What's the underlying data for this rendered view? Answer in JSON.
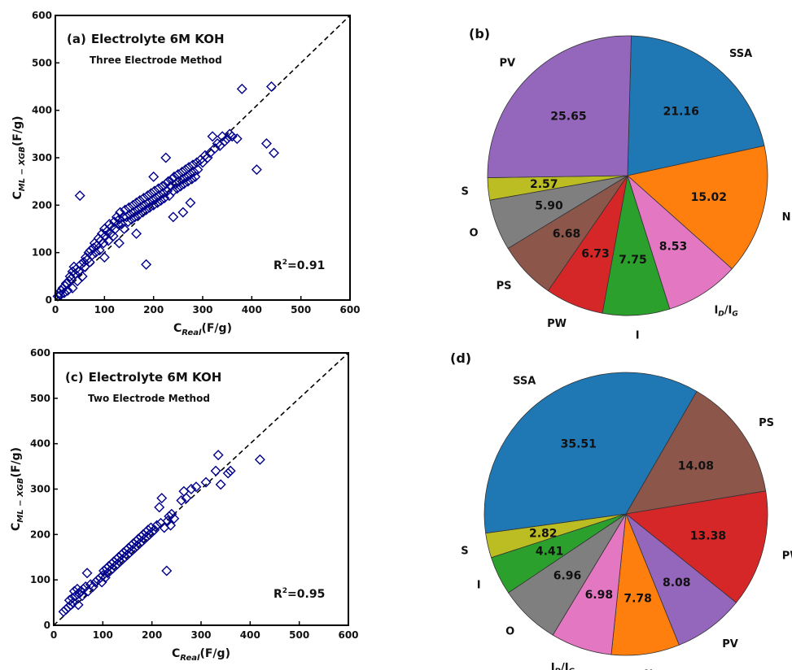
{
  "chart_data": [
    {
      "id": "a",
      "type": "scatter",
      "panel_label": "(a)",
      "title": "Electrolyte 6M KOH",
      "subtitle": "Three Electrode Method",
      "xlabel_main": "C",
      "xlabel_sub": "Real",
      "xlabel_unit": "(F/g)",
      "ylabel_main": "C",
      "ylabel_sub": "ML − XGB",
      "ylabel_unit": "(F/g)",
      "xlim": [
        0,
        600
      ],
      "ylim": [
        0,
        600
      ],
      "xticks": [
        0,
        100,
        200,
        300,
        400,
        500,
        600
      ],
      "yticks": [
        0,
        100,
        200,
        300,
        400,
        500,
        600
      ],
      "r2_label": "R",
      "r2_value": "=0.91",
      "reference_line": "y = x",
      "marker": "diamond",
      "marker_color": "#00008b",
      "points": [
        [
          5,
          8
        ],
        [
          8,
          15
        ],
        [
          10,
          10
        ],
        [
          12,
          20
        ],
        [
          15,
          25
        ],
        [
          18,
          15
        ],
        [
          20,
          30
        ],
        [
          22,
          35
        ],
        [
          25,
          20
        ],
        [
          28,
          40
        ],
        [
          30,
          50
        ],
        [
          32,
          45
        ],
        [
          35,
          60
        ],
        [
          35,
          25
        ],
        [
          38,
          70
        ],
        [
          40,
          55
        ],
        [
          42,
          65
        ],
        [
          45,
          40
        ],
        [
          48,
          60
        ],
        [
          50,
          220
        ],
        [
          52,
          75
        ],
        [
          55,
          50
        ],
        [
          58,
          80
        ],
        [
          60,
          70
        ],
        [
          62,
          90
        ],
        [
          65,
          85
        ],
        [
          68,
          100
        ],
        [
          70,
          80
        ],
        [
          72,
          105
        ],
        [
          75,
          95
        ],
        [
          78,
          110
        ],
        [
          80,
          120
        ],
        [
          82,
          100
        ],
        [
          85,
          115
        ],
        [
          88,
          130
        ],
        [
          90,
          105
        ],
        [
          92,
          125
        ],
        [
          95,
          140
        ],
        [
          98,
          120
        ],
        [
          100,
          150
        ],
        [
          100,
          90
        ],
        [
          102,
          135
        ],
        [
          105,
          145
        ],
        [
          108,
          125
        ],
        [
          110,
          160
        ],
        [
          112,
          140
        ],
        [
          115,
          155
        ],
        [
          118,
          135
        ],
        [
          120,
          165
        ],
        [
          122,
          150
        ],
        [
          125,
          175
        ],
        [
          128,
          160
        ],
        [
          130,
          170
        ],
        [
          130,
          120
        ],
        [
          132,
          185
        ],
        [
          135,
          160
        ],
        [
          138,
          175
        ],
        [
          140,
          150
        ],
        [
          142,
          190
        ],
        [
          145,
          175
        ],
        [
          148,
          165
        ],
        [
          150,
          195
        ],
        [
          152,
          180
        ],
        [
          155,
          170
        ],
        [
          158,
          200
        ],
        [
          160,
          185
        ],
        [
          162,
          175
        ],
        [
          165,
          205
        ],
        [
          165,
          140
        ],
        [
          168,
          190
        ],
        [
          170,
          180
        ],
        [
          172,
          210
        ],
        [
          175,
          195
        ],
        [
          178,
          185
        ],
        [
          180,
          215
        ],
        [
          182,
          200
        ],
        [
          185,
          190
        ],
        [
          185,
          75
        ],
        [
          188,
          220
        ],
        [
          190,
          205
        ],
        [
          192,
          195
        ],
        [
          195,
          225
        ],
        [
          198,
          210
        ],
        [
          200,
          200
        ],
        [
          200,
          260
        ],
        [
          202,
          230
        ],
        [
          205,
          215
        ],
        [
          208,
          205
        ],
        [
          210,
          235
        ],
        [
          212,
          220
        ],
        [
          215,
          210
        ],
        [
          218,
          240
        ],
        [
          220,
          225
        ],
        [
          222,
          215
        ],
        [
          225,
          245
        ],
        [
          225,
          300
        ],
        [
          228,
          230
        ],
        [
          230,
          250
        ],
        [
          232,
          220
        ],
        [
          235,
          240
        ],
        [
          238,
          255
        ],
        [
          240,
          230
        ],
        [
          240,
          175
        ],
        [
          242,
          260
        ],
        [
          245,
          245
        ],
        [
          248,
          235
        ],
        [
          250,
          265
        ],
        [
          252,
          250
        ],
        [
          255,
          240
        ],
        [
          258,
          270
        ],
        [
          260,
          255
        ],
        [
          260,
          185
        ],
        [
          262,
          245
        ],
        [
          265,
          275
        ],
        [
          268,
          260
        ],
        [
          270,
          250
        ],
        [
          272,
          280
        ],
        [
          275,
          265
        ],
        [
          275,
          205
        ],
        [
          278,
          255
        ],
        [
          280,
          285
        ],
        [
          282,
          270
        ],
        [
          285,
          260
        ],
        [
          288,
          290
        ],
        [
          290,
          275
        ],
        [
          295,
          295
        ],
        [
          300,
          290
        ],
        [
          305,
          305
        ],
        [
          310,
          300
        ],
        [
          315,
          310
        ],
        [
          320,
          345
        ],
        [
          325,
          320
        ],
        [
          330,
          330
        ],
        [
          335,
          325
        ],
        [
          340,
          345
        ],
        [
          345,
          335
        ],
        [
          350,
          340
        ],
        [
          355,
          350
        ],
        [
          360,
          345
        ],
        [
          370,
          340
        ],
        [
          380,
          445
        ],
        [
          410,
          275
        ],
        [
          430,
          330
        ],
        [
          440,
          450
        ],
        [
          445,
          310
        ]
      ]
    },
    {
      "id": "b",
      "type": "pie",
      "panel_label": "(b)",
      "slices": [
        {
          "label": "SSA",
          "value": 21.16,
          "text": "21.16",
          "color": "#1f77b4"
        },
        {
          "label": "N",
          "value": 15.02,
          "text": "15.02",
          "color": "#ff7f0e"
        },
        {
          "label": "I",
          "sub": "D",
          "label2": "/I",
          "sub2": "G",
          "value": 8.53,
          "text": "8.53",
          "color": "#e377c2"
        },
        {
          "label": "I",
          "value": 7.75,
          "text": "7.75",
          "color": "#2ca02c"
        },
        {
          "label": "PW",
          "value": 6.73,
          "text": "6.73",
          "color": "#d62728"
        },
        {
          "label": "PS",
          "value": 6.68,
          "text": "6.68",
          "color": "#8c564b"
        },
        {
          "label": "O",
          "value": 5.9,
          "text": "5.90",
          "color": "#7f7f7f"
        },
        {
          "label": "S",
          "value": 2.57,
          "text": "2.57",
          "color": "#bcbd22"
        },
        {
          "label": "PV",
          "value": 25.65,
          "text": "25.65",
          "color": "#9467bd"
        }
      ]
    },
    {
      "id": "c",
      "type": "scatter",
      "panel_label": "(c)",
      "title": "Electrolyte 6M KOH",
      "subtitle": "Two Electrode Method",
      "xlabel_main": "C",
      "xlabel_sub": "Real",
      "xlabel_unit": "(F/g)",
      "ylabel_main": "C",
      "ylabel_sub": "ML − XGB",
      "ylabel_unit": "(F/g)",
      "xlim": [
        0,
        600
      ],
      "ylim": [
        0,
        600
      ],
      "xticks": [
        0,
        100,
        200,
        300,
        400,
        500,
        600
      ],
      "yticks": [
        0,
        100,
        200,
        300,
        400,
        500,
        600
      ],
      "r2_label": "R",
      "r2_value": "=0.95",
      "reference_line": "y = x",
      "marker": "diamond",
      "marker_color": "#00008b",
      "points": [
        [
          20,
          30
        ],
        [
          25,
          35
        ],
        [
          30,
          40
        ],
        [
          32,
          55
        ],
        [
          35,
          45
        ],
        [
          38,
          60
        ],
        [
          40,
          50
        ],
        [
          42,
          75
        ],
        [
          45,
          65
        ],
        [
          48,
          80
        ],
        [
          50,
          45
        ],
        [
          52,
          70
        ],
        [
          55,
          75
        ],
        [
          58,
          65
        ],
        [
          60,
          80
        ],
        [
          65,
          85
        ],
        [
          68,
          115
        ],
        [
          70,
          75
        ],
        [
          75,
          90
        ],
        [
          80,
          85
        ],
        [
          85,
          95
        ],
        [
          90,
          100
        ],
        [
          95,
          105
        ],
        [
          98,
          95
        ],
        [
          100,
          110
        ],
        [
          102,
          120
        ],
        [
          105,
          105
        ],
        [
          108,
          125
        ],
        [
          110,
          115
        ],
        [
          112,
          130
        ],
        [
          115,
          120
        ],
        [
          118,
          135
        ],
        [
          120,
          125
        ],
        [
          122,
          140
        ],
        [
          125,
          130
        ],
        [
          128,
          145
        ],
        [
          130,
          135
        ],
        [
          132,
          150
        ],
        [
          135,
          140
        ],
        [
          138,
          155
        ],
        [
          140,
          145
        ],
        [
          142,
          160
        ],
        [
          145,
          150
        ],
        [
          148,
          165
        ],
        [
          150,
          155
        ],
        [
          152,
          170
        ],
        [
          155,
          160
        ],
        [
          158,
          175
        ],
        [
          160,
          165
        ],
        [
          162,
          180
        ],
        [
          165,
          170
        ],
        [
          168,
          185
        ],
        [
          170,
          175
        ],
        [
          172,
          190
        ],
        [
          175,
          180
        ],
        [
          178,
          195
        ],
        [
          180,
          185
        ],
        [
          182,
          200
        ],
        [
          185,
          190
        ],
        [
          188,
          205
        ],
        [
          190,
          195
        ],
        [
          192,
          210
        ],
        [
          195,
          200
        ],
        [
          198,
          215
        ],
        [
          200,
          205
        ],
        [
          205,
          210
        ],
        [
          210,
          220
        ],
        [
          215,
          260
        ],
        [
          218,
          225
        ],
        [
          220,
          280
        ],
        [
          225,
          215
        ],
        [
          230,
          120
        ],
        [
          232,
          230
        ],
        [
          235,
          240
        ],
        [
          238,
          220
        ],
        [
          240,
          245
        ],
        [
          245,
          235
        ],
        [
          260,
          275
        ],
        [
          265,
          295
        ],
        [
          270,
          280
        ],
        [
          280,
          300
        ],
        [
          290,
          305
        ],
        [
          310,
          315
        ],
        [
          330,
          340
        ],
        [
          335,
          375
        ],
        [
          340,
          310
        ],
        [
          355,
          335
        ],
        [
          360,
          340
        ],
        [
          420,
          365
        ]
      ]
    },
    {
      "id": "d",
      "type": "pie",
      "panel_label": "(d)",
      "slices": [
        {
          "label": "PS",
          "value": 14.08,
          "text": "14.08",
          "color": "#8c564b"
        },
        {
          "label": "PW",
          "value": 13.38,
          "text": "13.38",
          "color": "#d62728"
        },
        {
          "label": "PV",
          "value": 8.08,
          "text": "8.08",
          "color": "#9467bd"
        },
        {
          "label": "N",
          "value": 7.78,
          "text": "7.78",
          "color": "#ff7f0e"
        },
        {
          "label": "I",
          "sub": "D",
          "label2": "/I",
          "sub2": "G",
          "value": 6.98,
          "text": "6.98",
          "color": "#e377c2"
        },
        {
          "label": "O",
          "value": 6.96,
          "text": "6.96",
          "color": "#7f7f7f"
        },
        {
          "label": "I",
          "value": 4.41,
          "text": "4.41",
          "color": "#2ca02c"
        },
        {
          "label": "S",
          "value": 2.82,
          "text": "2.82",
          "color": "#bcbd22"
        },
        {
          "label": "SSA",
          "value": 35.51,
          "text": "35.51",
          "color": "#1f77b4"
        }
      ]
    }
  ]
}
